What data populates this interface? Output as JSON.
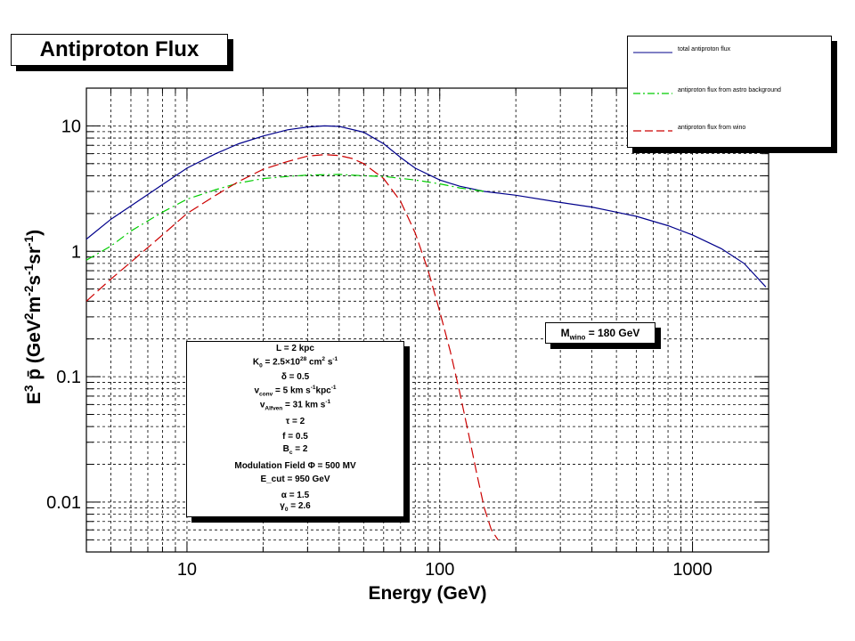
{
  "chart_data": {
    "type": "line",
    "title": "Antiproton Flux",
    "xlabel": "Energy (GeV)",
    "ylabel": "E³ p̄ (GeV²m⁻²s⁻¹sr⁻¹)",
    "xscale": "log",
    "yscale": "log",
    "xlim": [
      4,
      2000
    ],
    "ylim": [
      0.004,
      20
    ],
    "x_tick_labels": [
      "10",
      "100",
      "1000"
    ],
    "y_tick_labels": [
      "0.01",
      "0.1",
      "1",
      "10"
    ],
    "grid": true,
    "legend_position": "top-right",
    "series": [
      {
        "name": "total antiproton flux",
        "color": "#00008b",
        "dash": "solid",
        "x": [
          4,
          5,
          6,
          8,
          10,
          13,
          16,
          20,
          25,
          30,
          35,
          40,
          50,
          60,
          70,
          80,
          100,
          120,
          150,
          200,
          300,
          400,
          500,
          600,
          800,
          1000,
          1300,
          1600,
          1950
        ],
        "y": [
          1.25,
          1.8,
          2.3,
          3.4,
          4.6,
          6.0,
          7.2,
          8.3,
          9.3,
          9.8,
          10.0,
          9.9,
          8.9,
          7.2,
          5.6,
          4.6,
          3.7,
          3.3,
          3.0,
          2.8,
          2.45,
          2.25,
          2.05,
          1.9,
          1.6,
          1.35,
          1.05,
          0.8,
          0.52
        ]
      },
      {
        "name": "antiproton flux from astro background",
        "color": "#00cc00",
        "dash": "dash-dot",
        "x": [
          4,
          5,
          6,
          8,
          10,
          13,
          16,
          20,
          25,
          30,
          40,
          50,
          60,
          80,
          100,
          120,
          150
        ],
        "y": [
          0.85,
          1.1,
          1.45,
          2.05,
          2.6,
          3.1,
          3.5,
          3.8,
          3.95,
          4.05,
          4.1,
          4.0,
          3.95,
          3.7,
          3.45,
          3.2,
          3.0
        ]
      },
      {
        "name": "antiproton flux from wino",
        "color": "#cc0000",
        "dash": "dashed",
        "x": [
          4,
          5,
          6,
          8,
          10,
          13,
          16,
          20,
          25,
          30,
          35,
          40,
          45,
          50,
          60,
          70,
          80,
          90,
          100,
          110,
          120,
          130,
          140,
          150,
          160,
          170
        ],
        "y": [
          0.4,
          0.6,
          0.82,
          1.35,
          2.0,
          2.8,
          3.6,
          4.5,
          5.2,
          5.75,
          5.9,
          5.8,
          5.5,
          5.0,
          3.8,
          2.5,
          1.4,
          0.7,
          0.33,
          0.16,
          0.075,
          0.035,
          0.017,
          0.009,
          0.006,
          0.005
        ]
      }
    ]
  },
  "annotations": {
    "mass_box": {
      "m": "M",
      "sub": "wino",
      "text": " = 180 GeV"
    }
  },
  "params": {
    "L": "L = 2 kpc",
    "K0_a": "K",
    "K0_sub": "0",
    "K0_b": " = 2.5×10",
    "K0_sup": "28",
    "K0_c": " cm",
    "K0_sup2": "2",
    "K0_d": " s",
    "K0_sup3": "-1",
    "delta": "δ = 0.5",
    "vconv_a": "v",
    "vconv_sub": "conv",
    "vconv_b": " = 5 km s",
    "vconv_sup": "-1",
    "vconv_c": "kpc",
    "vconv_sup2": "-1",
    "valf_a": "v",
    "valf_sub": "Alfven",
    "valf_b": " = 31 km s",
    "valf_sup": "-1",
    "tau": "τ = 2",
    "f": "f = 0.5",
    "Bc_a": "B",
    "Bc_sub": "c",
    "Bc_b": " = 2",
    "mod": "Modulation Field    Φ = 500 MV",
    "ecut": "E_cut = 950 GeV",
    "alpha": "α = 1.5",
    "gamma_a": "γ",
    "gamma_sub": "0",
    "gamma_b": " = 2.6"
  },
  "ylabel_parts": {
    "a": "E",
    "sup1": "3",
    "b": " p̄ (GeV",
    "sup2": "2",
    "c": "m",
    "sup3": "-2",
    "d": "s",
    "sup4": "-1",
    "e": "sr",
    "sup5": "-1",
    "f": ")"
  }
}
